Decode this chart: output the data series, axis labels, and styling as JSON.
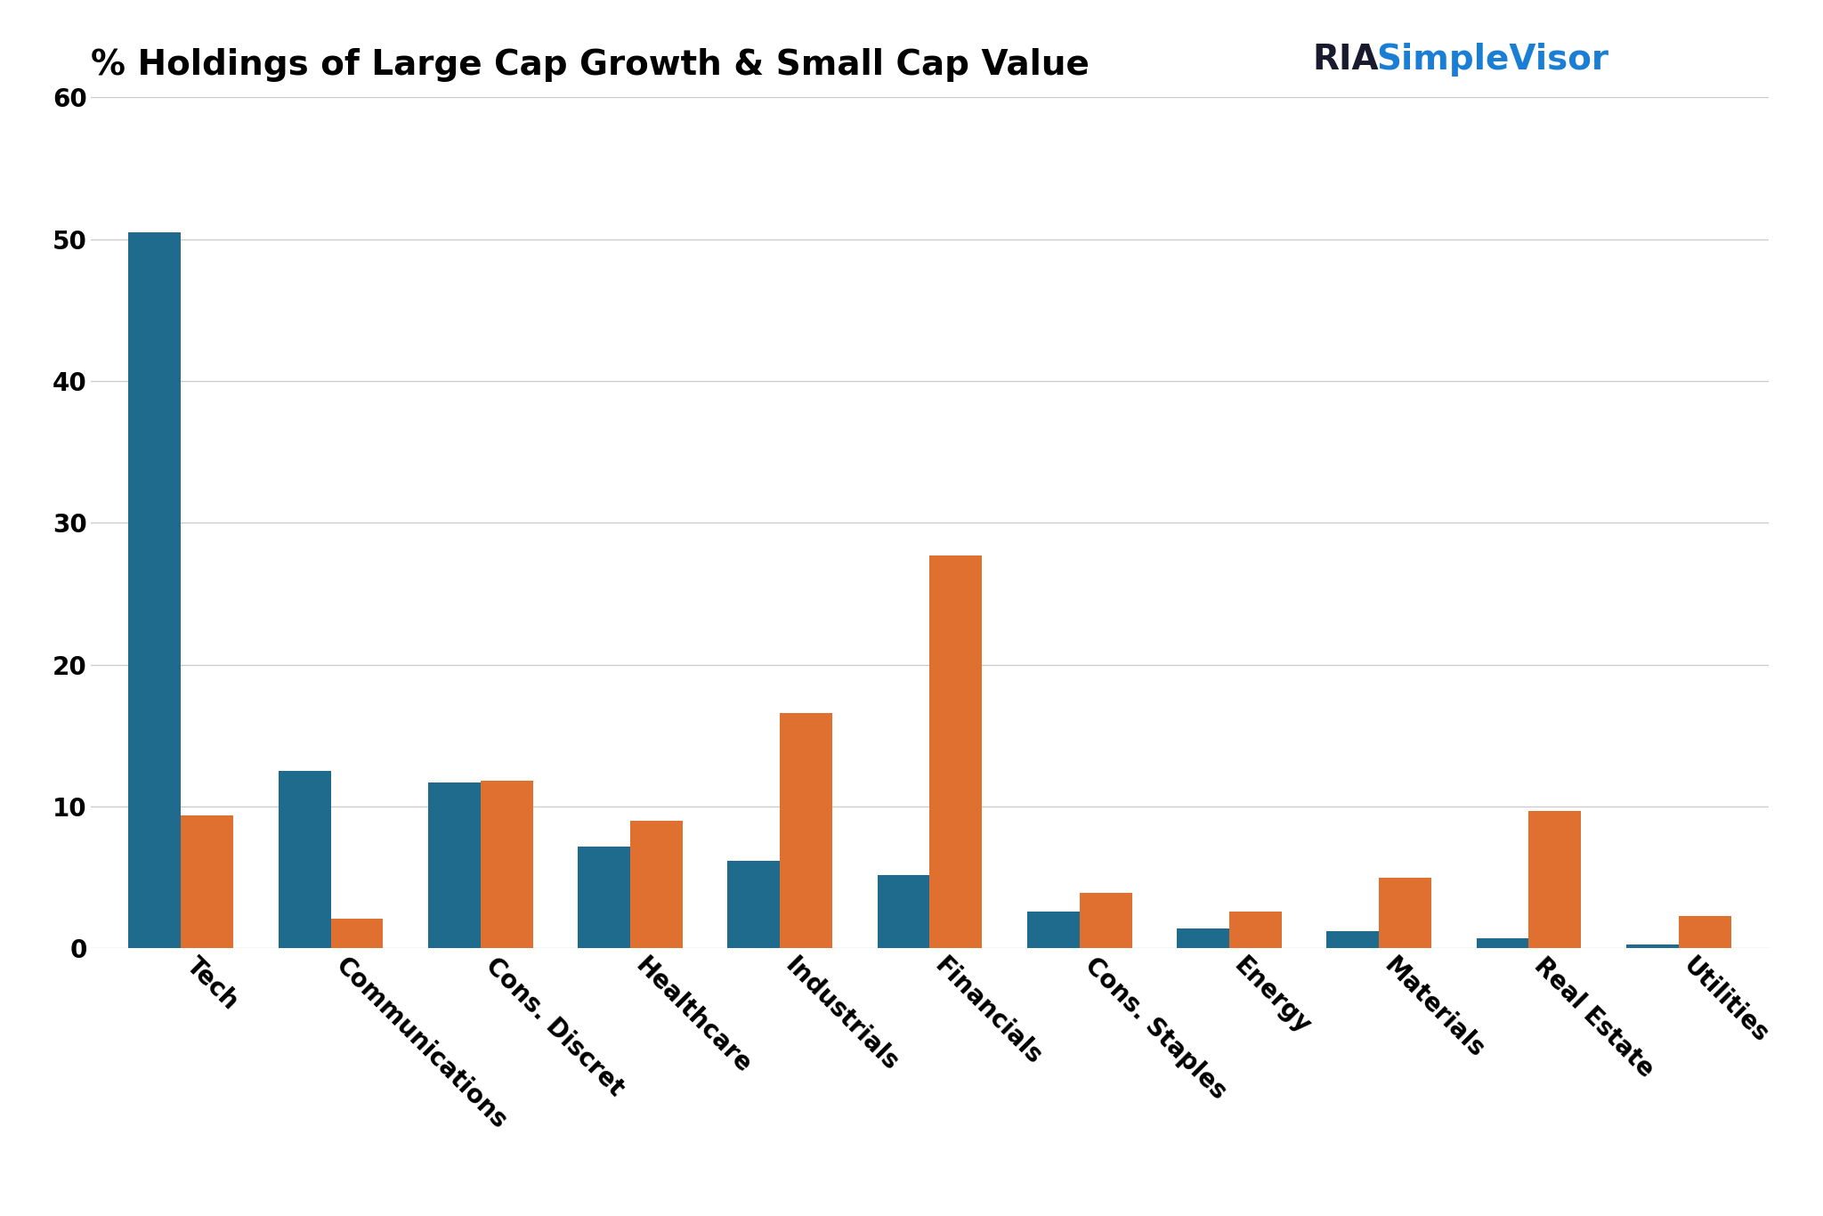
{
  "title": "% Holdings of Large Cap Growth & Small Cap Value",
  "categories": [
    "Tech",
    "Communications",
    "Cons. Discret",
    "Healthcare",
    "Industrials",
    "Financials",
    "Cons. Staples",
    "Energy",
    "Materials",
    "Real Estate",
    "Utilities"
  ],
  "ivw_values": [
    50.5,
    12.5,
    11.7,
    7.2,
    6.2,
    5.2,
    2.6,
    1.4,
    1.2,
    0.7,
    0.3
  ],
  "ijs_values": [
    9.4,
    2.1,
    11.8,
    9.0,
    16.6,
    27.7,
    3.9,
    2.6,
    5.0,
    9.7,
    2.3
  ],
  "ivw_color": "#1f6b8e",
  "ijs_color": "#e07030",
  "ylim": [
    0,
    60
  ],
  "yticks": [
    0,
    10,
    20,
    30,
    40,
    50,
    60
  ],
  "bar_width": 0.35,
  "background_color": "#ffffff",
  "grid_color": "#cccccc",
  "title_fontsize": 28,
  "tick_fontsize": 20,
  "legend_fontsize": 20,
  "ria_color": "#1a1a2e",
  "simplevisor_color": "#1a7fd4"
}
